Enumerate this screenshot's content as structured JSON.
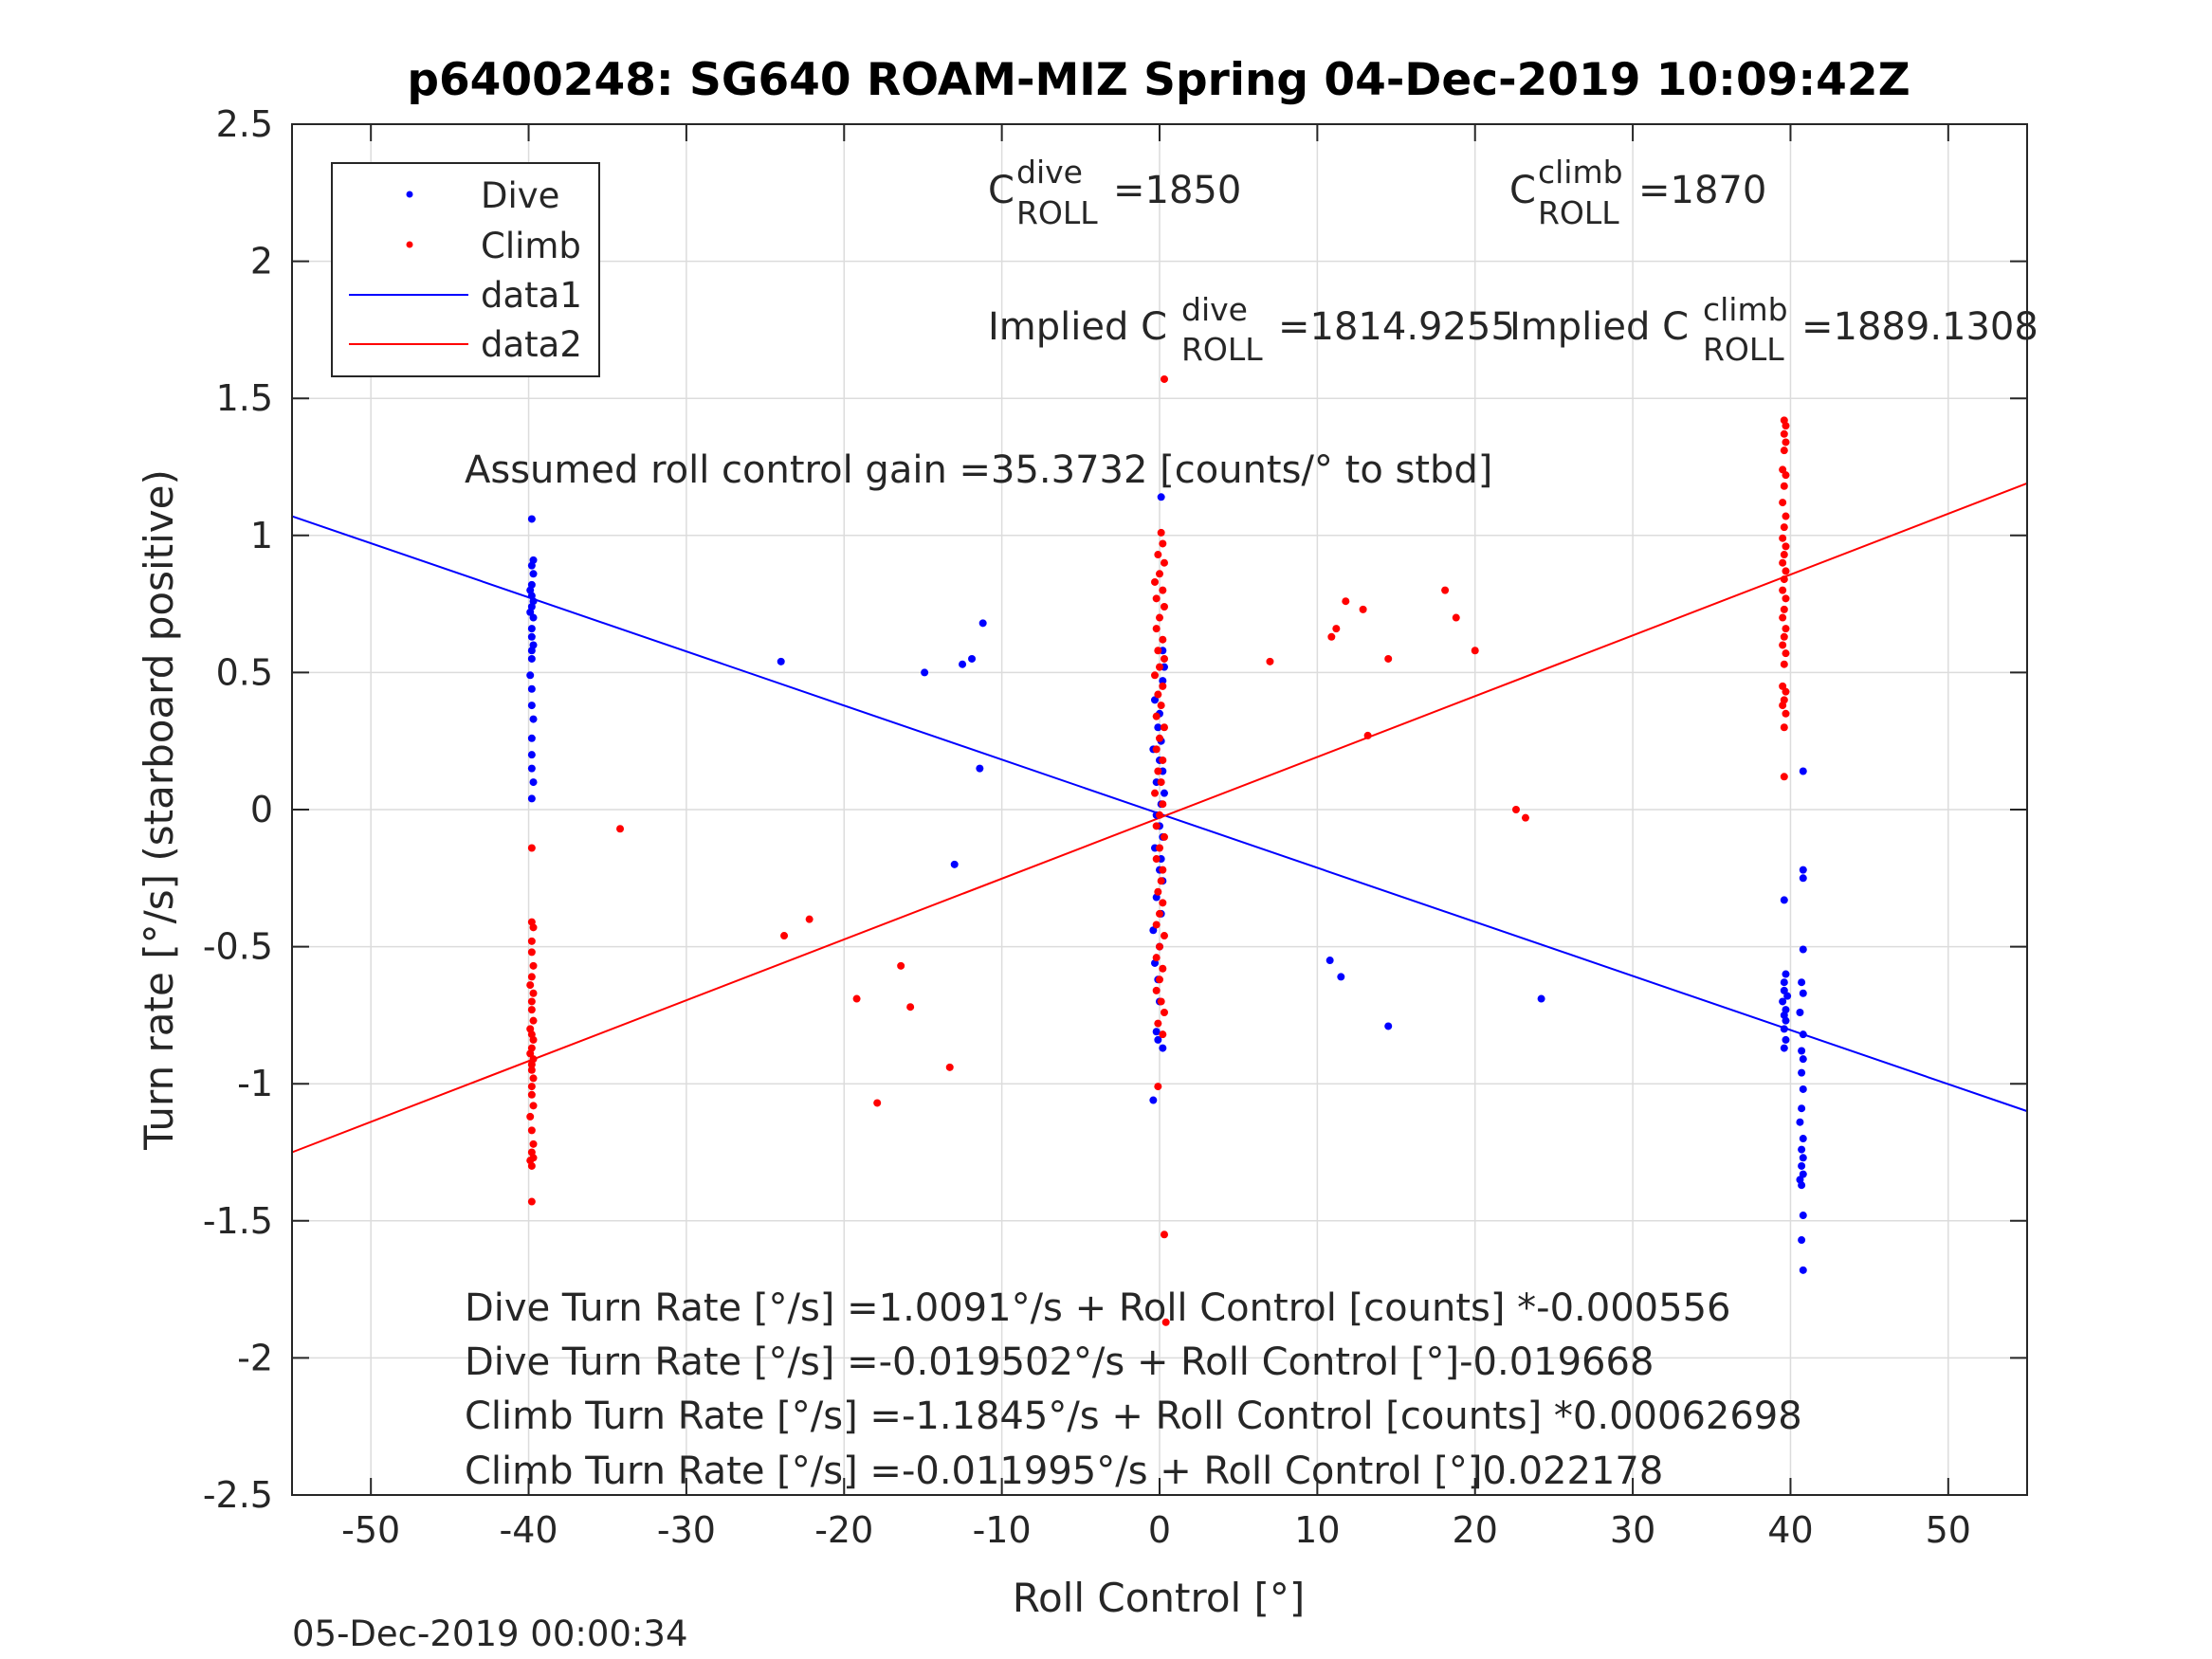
{
  "chart_data": {
    "type": "scatter",
    "title": "p6400248: SG640 ROAM-MIZ Spring 04-Dec-2019 10:09:42Z",
    "xlabel": "Roll Control [°]",
    "ylabel": "Turn rate [°/s] (starboard positive)",
    "xlim": [
      -55,
      55
    ],
    "ylim": [
      -2.5,
      2.5
    ],
    "xticks": [
      -50,
      -40,
      -30,
      -20,
      -10,
      0,
      10,
      20,
      30,
      40,
      50
    ],
    "yticks": [
      -2.5,
      -2,
      -1.5,
      -1,
      -0.5,
      0,
      0.5,
      1,
      1.5,
      2,
      2.5
    ],
    "grid": true,
    "legend_position": "top-left",
    "legend": [
      "Dive",
      "Climb",
      "data1",
      "data2"
    ],
    "series": [
      {
        "name": "Dive",
        "kind": "points",
        "color": "#0000ff",
        "points": [
          [
            -39.8,
            1.06
          ],
          [
            -39.7,
            0.91
          ],
          [
            -39.8,
            0.89
          ],
          [
            -39.7,
            0.86
          ],
          [
            -39.8,
            0.82
          ],
          [
            -39.9,
            0.8
          ],
          [
            -39.8,
            0.78
          ],
          [
            -39.7,
            0.76
          ],
          [
            -39.8,
            0.74
          ],
          [
            -39.9,
            0.72
          ],
          [
            -39.7,
            0.7
          ],
          [
            -39.8,
            0.66
          ],
          [
            -39.8,
            0.63
          ],
          [
            -39.7,
            0.6
          ],
          [
            -39.8,
            0.58
          ],
          [
            -39.8,
            0.55
          ],
          [
            -39.9,
            0.49
          ],
          [
            -39.8,
            0.44
          ],
          [
            -39.8,
            0.38
          ],
          [
            -39.7,
            0.33
          ],
          [
            -39.8,
            0.26
          ],
          [
            -39.8,
            0.2
          ],
          [
            -39.8,
            0.15
          ],
          [
            -39.7,
            0.1
          ],
          [
            -39.8,
            0.04
          ],
          [
            -24,
            0.54
          ],
          [
            -14.9,
            0.5
          ],
          [
            -12.5,
            0.53
          ],
          [
            -11.9,
            0.55
          ],
          [
            -11.2,
            0.68
          ],
          [
            -11.4,
            0.15
          ],
          [
            -13.0,
            -0.2
          ],
          [
            0.1,
            1.14
          ],
          [
            0.2,
            0.58
          ],
          [
            0.3,
            0.52
          ],
          [
            0.2,
            0.47
          ],
          [
            -0.3,
            0.4
          ],
          [
            0.0,
            0.35
          ],
          [
            -0.1,
            0.3
          ],
          [
            0.1,
            0.25
          ],
          [
            -0.4,
            0.22
          ],
          [
            0.0,
            0.18
          ],
          [
            0.2,
            0.14
          ],
          [
            -0.2,
            0.1
          ],
          [
            0.3,
            0.06
          ],
          [
            0.1,
            0.02
          ],
          [
            -0.2,
            -0.02
          ],
          [
            0.0,
            -0.06
          ],
          [
            0.2,
            -0.1
          ],
          [
            -0.3,
            -0.14
          ],
          [
            0.1,
            -0.18
          ],
          [
            0.0,
            -0.22
          ],
          [
            0.2,
            -0.26
          ],
          [
            -0.2,
            -0.32
          ],
          [
            0.1,
            -0.38
          ],
          [
            -0.4,
            -0.44
          ],
          [
            0.0,
            -0.5
          ],
          [
            -0.3,
            -0.56
          ],
          [
            -0.1,
            -0.62
          ],
          [
            0.0,
            -0.7
          ],
          [
            -0.1,
            -0.84
          ],
          [
            0.2,
            -0.87
          ],
          [
            -0.2,
            -0.81
          ],
          [
            -0.4,
            -1.06
          ],
          [
            10.8,
            -0.55
          ],
          [
            11.5,
            -0.61
          ],
          [
            14.5,
            -0.79
          ],
          [
            24.2,
            -0.69
          ],
          [
            40.8,
            0.14
          ],
          [
            40.8,
            -0.22
          ],
          [
            40.8,
            -0.25
          ],
          [
            39.6,
            -0.33
          ],
          [
            40.8,
            -0.51
          ],
          [
            39.7,
            -0.6
          ],
          [
            39.6,
            -0.63
          ],
          [
            40.7,
            -0.63
          ],
          [
            39.6,
            -0.66
          ],
          [
            39.8,
            -0.68
          ],
          [
            40.8,
            -0.67
          ],
          [
            39.5,
            -0.7
          ],
          [
            39.7,
            -0.73
          ],
          [
            39.6,
            -0.75
          ],
          [
            40.6,
            -0.74
          ],
          [
            39.7,
            -0.77
          ],
          [
            39.6,
            -0.8
          ],
          [
            40.8,
            -0.82
          ],
          [
            39.7,
            -0.84
          ],
          [
            39.6,
            -0.87
          ],
          [
            40.7,
            -0.88
          ],
          [
            40.8,
            -0.91
          ],
          [
            40.7,
            -0.96
          ],
          [
            40.8,
            -1.02
          ],
          [
            40.7,
            -1.09
          ],
          [
            40.6,
            -1.14
          ],
          [
            40.8,
            -1.2
          ],
          [
            40.7,
            -1.24
          ],
          [
            40.8,
            -1.27
          ],
          [
            40.7,
            -1.3
          ],
          [
            40.8,
            -1.33
          ],
          [
            40.6,
            -1.35
          ],
          [
            40.7,
            -1.37
          ],
          [
            40.8,
            -1.48
          ],
          [
            40.7,
            -1.57
          ],
          [
            40.8,
            -1.68
          ]
        ]
      },
      {
        "name": "Climb",
        "kind": "points",
        "color": "#ff0000",
        "points": [
          [
            -39.8,
            -0.14
          ],
          [
            -39.8,
            -0.41
          ],
          [
            -39.7,
            -0.43
          ],
          [
            -39.8,
            -0.48
          ],
          [
            -39.8,
            -0.52
          ],
          [
            -39.7,
            -0.57
          ],
          [
            -39.8,
            -0.61
          ],
          [
            -39.9,
            -0.64
          ],
          [
            -39.7,
            -0.67
          ],
          [
            -39.8,
            -0.7
          ],
          [
            -39.8,
            -0.73
          ],
          [
            -39.7,
            -0.77
          ],
          [
            -39.9,
            -0.8
          ],
          [
            -39.8,
            -0.82
          ],
          [
            -39.7,
            -0.84
          ],
          [
            -39.8,
            -0.87
          ],
          [
            -39.9,
            -0.89
          ],
          [
            -39.7,
            -0.91
          ],
          [
            -39.8,
            -0.93
          ],
          [
            -39.8,
            -0.95
          ],
          [
            -39.7,
            -0.98
          ],
          [
            -39.8,
            -1.01
          ],
          [
            -39.8,
            -1.04
          ],
          [
            -39.7,
            -1.08
          ],
          [
            -39.9,
            -1.12
          ],
          [
            -39.8,
            -1.17
          ],
          [
            -39.7,
            -1.22
          ],
          [
            -39.8,
            -1.25
          ],
          [
            -39.7,
            -1.27
          ],
          [
            -39.8,
            -1.3
          ],
          [
            -39.9,
            -1.28
          ],
          [
            -39.8,
            -1.43
          ],
          [
            -34.2,
            -0.07
          ],
          [
            -23.8,
            -0.46
          ],
          [
            -22.2,
            -0.4
          ],
          [
            -19.2,
            -0.69
          ],
          [
            -17.9,
            -1.07
          ],
          [
            -16.4,
            -0.57
          ],
          [
            -15.8,
            -0.72
          ],
          [
            -13.3,
            -0.94
          ],
          [
            0.3,
            1.57
          ],
          [
            0.1,
            1.01
          ],
          [
            0.2,
            0.97
          ],
          [
            -0.1,
            0.93
          ],
          [
            0.3,
            0.9
          ],
          [
            0.0,
            0.86
          ],
          [
            -0.3,
            0.83
          ],
          [
            0.2,
            0.8
          ],
          [
            -0.2,
            0.77
          ],
          [
            0.3,
            0.74
          ],
          [
            0.0,
            0.7
          ],
          [
            -0.2,
            0.66
          ],
          [
            0.2,
            0.62
          ],
          [
            -0.1,
            0.58
          ],
          [
            0.3,
            0.55
          ],
          [
            0.0,
            0.52
          ],
          [
            -0.3,
            0.49
          ],
          [
            0.2,
            0.45
          ],
          [
            -0.1,
            0.42
          ],
          [
            0.1,
            0.38
          ],
          [
            -0.2,
            0.34
          ],
          [
            0.3,
            0.3
          ],
          [
            0.0,
            0.26
          ],
          [
            -0.2,
            0.22
          ],
          [
            0.2,
            0.18
          ],
          [
            -0.1,
            0.14
          ],
          [
            0.1,
            0.1
          ],
          [
            -0.3,
            0.06
          ],
          [
            0.2,
            0.02
          ],
          [
            0.0,
            -0.02
          ],
          [
            -0.2,
            -0.06
          ],
          [
            0.3,
            -0.1
          ],
          [
            0.0,
            -0.14
          ],
          [
            -0.2,
            -0.18
          ],
          [
            0.2,
            -0.22
          ],
          [
            0.1,
            -0.26
          ],
          [
            -0.1,
            -0.3
          ],
          [
            0.2,
            -0.34
          ],
          [
            0.0,
            -0.38
          ],
          [
            -0.2,
            -0.42
          ],
          [
            0.3,
            -0.46
          ],
          [
            0.0,
            -0.5
          ],
          [
            -0.2,
            -0.54
          ],
          [
            0.2,
            -0.58
          ],
          [
            0.0,
            -0.62
          ],
          [
            -0.2,
            -0.66
          ],
          [
            0.1,
            -0.7
          ],
          [
            0.3,
            -0.74
          ],
          [
            -0.1,
            -0.78
          ],
          [
            0.2,
            -0.82
          ],
          [
            -0.1,
            -1.01
          ],
          [
            0.3,
            -1.55
          ],
          [
            0.4,
            -1.87
          ],
          [
            7.0,
            0.54
          ],
          [
            10.9,
            0.63
          ],
          [
            11.2,
            0.66
          ],
          [
            11.8,
            0.76
          ],
          [
            12.9,
            0.73
          ],
          [
            13.2,
            0.27
          ],
          [
            14.5,
            0.55
          ],
          [
            18.1,
            0.8
          ],
          [
            18.8,
            0.7
          ],
          [
            20.0,
            0.58
          ],
          [
            22.6,
            0.0
          ],
          [
            23.2,
            -0.03
          ],
          [
            39.6,
            1.42
          ],
          [
            39.7,
            1.4
          ],
          [
            39.6,
            1.37
          ],
          [
            39.7,
            1.34
          ],
          [
            39.6,
            1.31
          ],
          [
            39.5,
            1.24
          ],
          [
            39.7,
            1.22
          ],
          [
            39.6,
            1.18
          ],
          [
            39.5,
            1.12
          ],
          [
            39.7,
            1.07
          ],
          [
            39.6,
            1.03
          ],
          [
            39.5,
            0.99
          ],
          [
            39.7,
            0.96
          ],
          [
            39.6,
            0.93
          ],
          [
            39.5,
            0.9
          ],
          [
            39.7,
            0.87
          ],
          [
            39.6,
            0.84
          ],
          [
            39.5,
            0.8
          ],
          [
            39.7,
            0.77
          ],
          [
            39.6,
            0.73
          ],
          [
            39.5,
            0.7
          ],
          [
            39.7,
            0.66
          ],
          [
            39.6,
            0.63
          ],
          [
            39.5,
            0.6
          ],
          [
            39.7,
            0.57
          ],
          [
            39.6,
            0.53
          ],
          [
            39.5,
            0.45
          ],
          [
            39.7,
            0.43
          ],
          [
            39.6,
            0.4
          ],
          [
            39.5,
            0.38
          ],
          [
            39.7,
            0.35
          ],
          [
            39.6,
            0.3
          ],
          [
            39.6,
            0.12
          ]
        ]
      },
      {
        "name": "data1",
        "kind": "line",
        "color": "#0000ff",
        "points": [
          [
            -55,
            1.07
          ],
          [
            55,
            -1.1
          ]
        ]
      },
      {
        "name": "data2",
        "kind": "line",
        "color": "#ff0000",
        "points": [
          [
            -55,
            -1.25
          ],
          [
            55,
            1.19
          ]
        ]
      }
    ],
    "annotations": {
      "c_dive_label": "C",
      "c_dive_sup": "dive",
      "c_dive_sub": "ROLL",
      "c_dive_value": "=1850",
      "c_climb_label": "C",
      "c_climb_sup": "climb",
      "c_climb_sub": "ROLL",
      "c_climb_value": "=1870",
      "implied_dive_label": "Implied C",
      "implied_dive_sup": "dive",
      "implied_dive_sub": "ROLL",
      "implied_dive_value": "=1814.9255",
      "implied_climb_label": "Implied C",
      "implied_climb_sup": "climb",
      "implied_climb_sub": "ROLL",
      "implied_climb_value": "=1889.1308",
      "gain": "Assumed roll control gain =35.3732 [counts/° to stbd]",
      "eq1": "Dive Turn Rate [°/s] =1.0091°/s + Roll Control [counts] *-0.000556",
      "eq2": "Dive Turn Rate [°/s] =-0.019502°/s + Roll Control [°]-0.019668",
      "eq3": "Climb Turn Rate [°/s] =-1.1845°/s + Roll Control [counts] *0.00062698",
      "eq4": "Climb Turn Rate [°/s] =-0.011995°/s + Roll Control [°]0.022178"
    },
    "timestamp": "05-Dec-2019 00:00:34"
  }
}
